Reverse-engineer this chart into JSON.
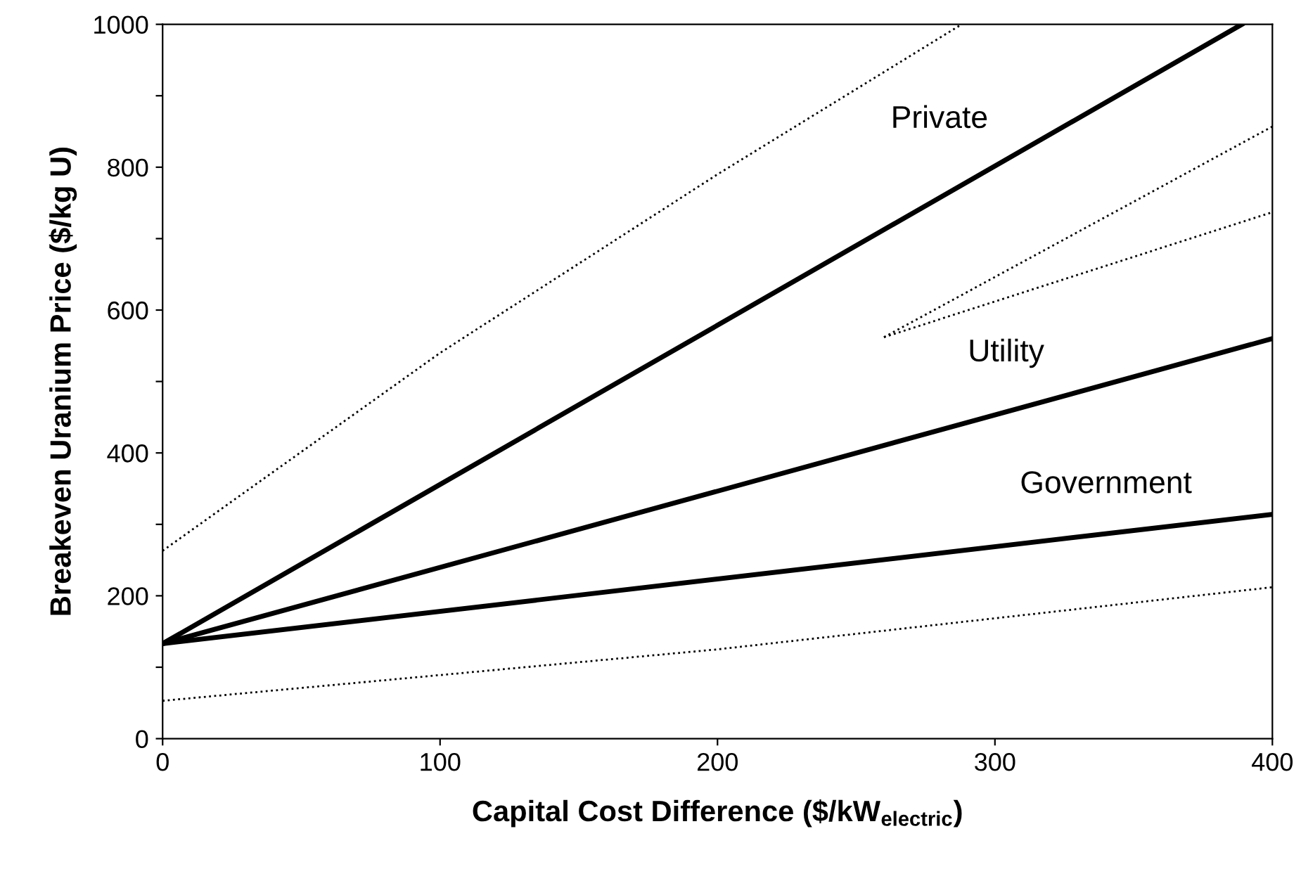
{
  "chart_data": {
    "type": "line",
    "xlabel": "Capital Cost Difference ($/kW$_{electric}$)",
    "ylabel": "Breakeven Uranium Price ($/kg U)",
    "xlim": [
      0,
      400
    ],
    "ylim": [
      0,
      1000
    ],
    "xticks": [
      0,
      100,
      200,
      300,
      400
    ],
    "yticks": [
      0,
      {
        "value": 100,
        "label": null
      },
      200,
      {
        "value": 300,
        "label": null
      },
      400,
      {
        "value": 500,
        "label": null
      },
      600,
      {
        "value": 700,
        "label": null
      },
      800,
      {
        "value": 900,
        "label": null
      },
      1000
    ],
    "grid": false,
    "legend": false,
    "marker": "none",
    "series": [
      {
        "name": "Private",
        "color": "#000000",
        "line_style": "solid",
        "x": [
          0,
          389
        ],
        "values": [
          133,
          1000
        ]
      },
      {
        "name": "Utility",
        "color": "#000000",
        "line_style": "solid",
        "x": [
          0,
          400
        ],
        "values": [
          133,
          560
        ]
      },
      {
        "name": "Government",
        "color": "#000000",
        "line_style": "solid",
        "x": [
          0,
          400
        ],
        "values": [
          133,
          314
        ]
      },
      {
        "color": "#000000",
        "line_style": "dotted",
        "x": [
          0,
          100,
          200,
          288
        ],
        "values": [
          263,
          540,
          790,
          1000
        ]
      },
      {
        "color": "#000000",
        "line_style": "dotted",
        "x": [
          260,
          400
        ],
        "values": [
          562,
          857
        ]
      },
      {
        "color": "#000000",
        "line_style": "dotted",
        "x": [
          260,
          400
        ],
        "values": [
          562,
          737
        ]
      },
      {
        "color": "#000000",
        "line_style": "dotted",
        "x": [
          0,
          200,
          400
        ],
        "values": [
          53,
          125,
          212
        ]
      }
    ]
  }
}
